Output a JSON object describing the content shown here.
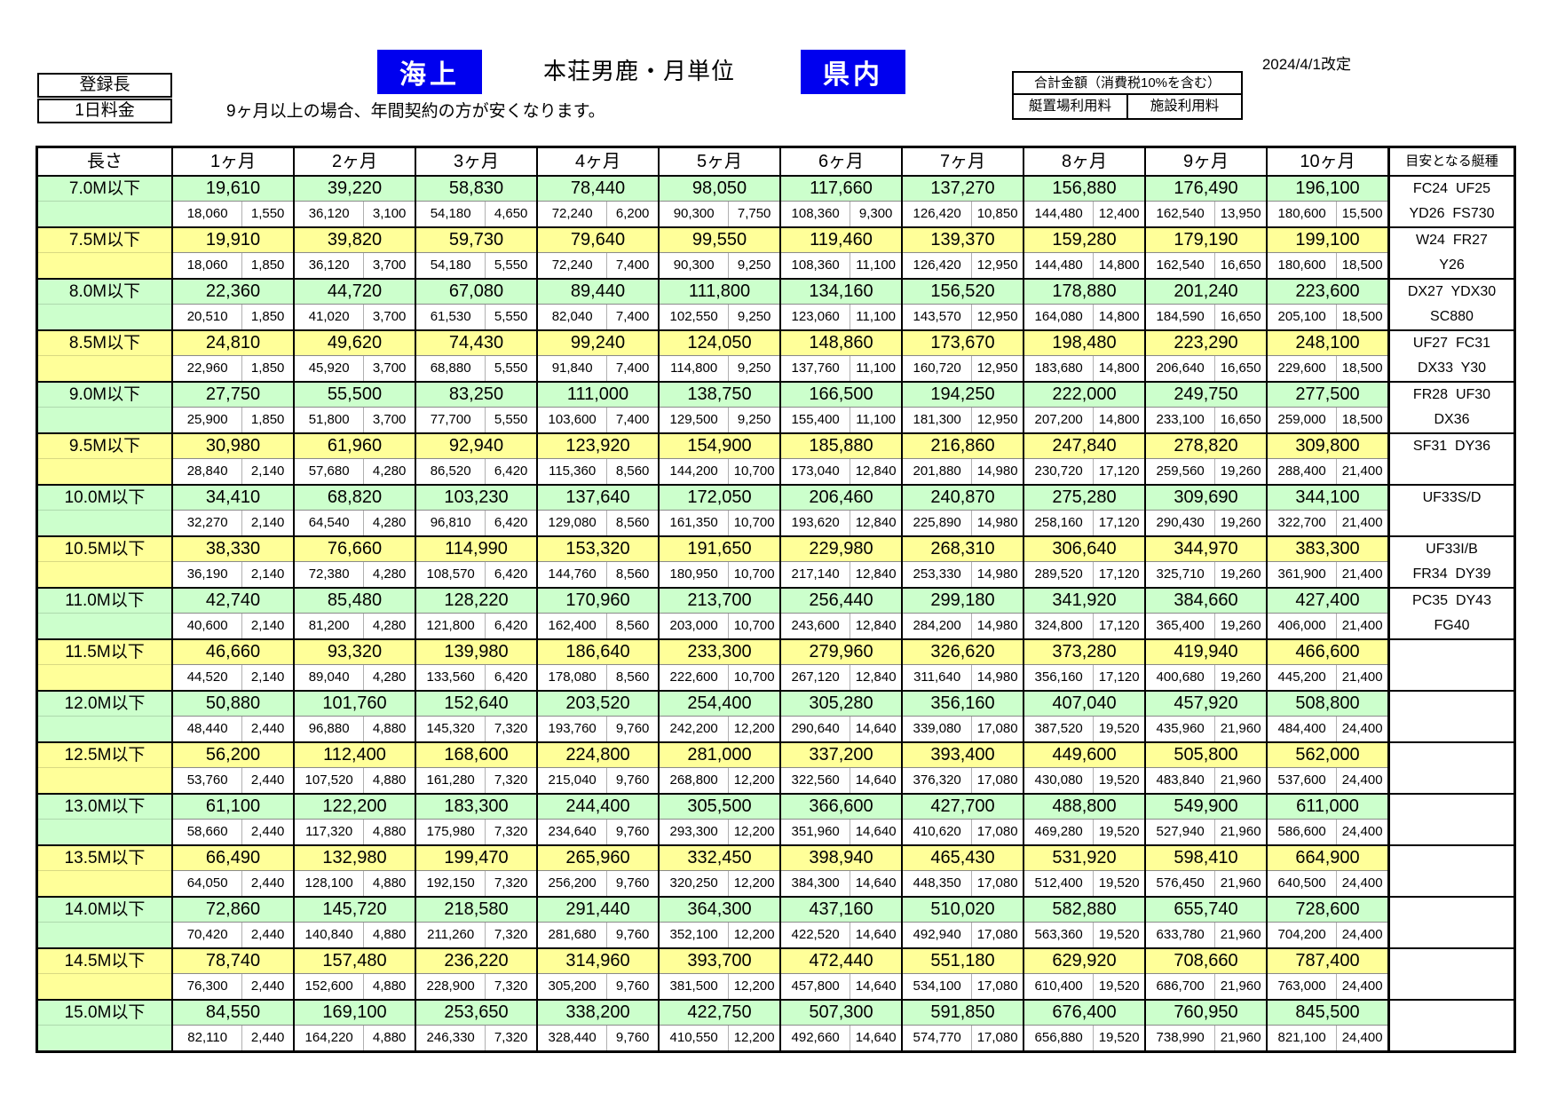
{
  "colors": {
    "accent_blue": "#0000EF",
    "row_green": "#CCFFCC",
    "row_yellow": "#FFFF99"
  },
  "header": {
    "registered_length_label": "登録長",
    "daily_fee_label": "1日料金",
    "sea_badge": "海上",
    "title": "本荘男鹿・月単位",
    "prefecture_badge": "県内",
    "revision_date": "2024/4/1改定",
    "note": "9ヶ月以上の場合、年間契約の方が安くなります。",
    "total_box": {
      "title": "合計金額（消費税10%を含む）",
      "mooring_label": "艇置場利用料",
      "facility_label": "施設利用料"
    }
  },
  "table": {
    "length_header": "長さ",
    "month_headers": [
      "1ヶ月",
      "2ヶ月",
      "3ヶ月",
      "4ヶ月",
      "5ヶ月",
      "6ヶ月",
      "7ヶ月",
      "8ヶ月",
      "9ヶ月",
      "10ヶ月"
    ],
    "boat_type_header": "目安となる艇種",
    "rows": [
      {
        "length": "7.0M以下",
        "tone": "green",
        "totals": [
          "19,610",
          "39,220",
          "58,830",
          "78,440",
          "98,050",
          "117,660",
          "137,270",
          "156,880",
          "176,490",
          "196,100"
        ],
        "mooring": [
          "18,060",
          "36,120",
          "54,180",
          "72,240",
          "90,300",
          "108,360",
          "126,420",
          "144,480",
          "162,540",
          "180,600"
        ],
        "facility": [
          "1,550",
          "3,100",
          "4,650",
          "6,200",
          "7,750",
          "9,300",
          "10,850",
          "12,400",
          "13,950",
          "15,500"
        ],
        "boats": [
          "FC24  UF25",
          "YD26  FS730"
        ]
      },
      {
        "length": "7.5M以下",
        "tone": "yellow",
        "totals": [
          "19,910",
          "39,820",
          "59,730",
          "79,640",
          "99,550",
          "119,460",
          "139,370",
          "159,280",
          "179,190",
          "199,100"
        ],
        "mooring": [
          "18,060",
          "36,120",
          "54,180",
          "72,240",
          "90,300",
          "108,360",
          "126,420",
          "144,480",
          "162,540",
          "180,600"
        ],
        "facility": [
          "1,850",
          "3,700",
          "5,550",
          "7,400",
          "9,250",
          "11,100",
          "12,950",
          "14,800",
          "16,650",
          "18,500"
        ],
        "boats": [
          "W24  FR27",
          "Y26"
        ]
      },
      {
        "length": "8.0M以下",
        "tone": "green",
        "totals": [
          "22,360",
          "44,720",
          "67,080",
          "89,440",
          "111,800",
          "134,160",
          "156,520",
          "178,880",
          "201,240",
          "223,600"
        ],
        "mooring": [
          "20,510",
          "41,020",
          "61,530",
          "82,040",
          "102,550",
          "123,060",
          "143,570",
          "164,080",
          "184,590",
          "205,100"
        ],
        "facility": [
          "1,850",
          "3,700",
          "5,550",
          "7,400",
          "9,250",
          "11,100",
          "12,950",
          "14,800",
          "16,650",
          "18,500"
        ],
        "boats": [
          "DX27  YDX30",
          "SC880"
        ]
      },
      {
        "length": "8.5M以下",
        "tone": "yellow",
        "totals": [
          "24,810",
          "49,620",
          "74,430",
          "99,240",
          "124,050",
          "148,860",
          "173,670",
          "198,480",
          "223,290",
          "248,100"
        ],
        "mooring": [
          "22,960",
          "45,920",
          "68,880",
          "91,840",
          "114,800",
          "137,760",
          "160,720",
          "183,680",
          "206,640",
          "229,600"
        ],
        "facility": [
          "1,850",
          "3,700",
          "5,550",
          "7,400",
          "9,250",
          "11,100",
          "12,950",
          "14,800",
          "16,650",
          "18,500"
        ],
        "boats": [
          "UF27  FC31",
          "DX33  Y30"
        ]
      },
      {
        "length": "9.0M以下",
        "tone": "green",
        "totals": [
          "27,750",
          "55,500",
          "83,250",
          "111,000",
          "138,750",
          "166,500",
          "194,250",
          "222,000",
          "249,750",
          "277,500"
        ],
        "mooring": [
          "25,900",
          "51,800",
          "77,700",
          "103,600",
          "129,500",
          "155,400",
          "181,300",
          "207,200",
          "233,100",
          "259,000"
        ],
        "facility": [
          "1,850",
          "3,700",
          "5,550",
          "7,400",
          "9,250",
          "11,100",
          "12,950",
          "14,800",
          "16,650",
          "18,500"
        ],
        "boats": [
          "FR28  UF30",
          "DX36"
        ]
      },
      {
        "length": "9.5M以下",
        "tone": "yellow",
        "totals": [
          "30,980",
          "61,960",
          "92,940",
          "123,920",
          "154,900",
          "185,880",
          "216,860",
          "247,840",
          "278,820",
          "309,800"
        ],
        "mooring": [
          "28,840",
          "57,680",
          "86,520",
          "115,360",
          "144,200",
          "173,040",
          "201,880",
          "230,720",
          "259,560",
          "288,400"
        ],
        "facility": [
          "2,140",
          "4,280",
          "6,420",
          "8,560",
          "10,700",
          "12,840",
          "14,980",
          "17,120",
          "19,260",
          "21,400"
        ],
        "boats": [
          "SF31  DY36",
          ""
        ]
      },
      {
        "length": "10.0M以下",
        "tone": "green",
        "totals": [
          "34,410",
          "68,820",
          "103,230",
          "137,640",
          "172,050",
          "206,460",
          "240,870",
          "275,280",
          "309,690",
          "344,100"
        ],
        "mooring": [
          "32,270",
          "64,540",
          "96,810",
          "129,080",
          "161,350",
          "193,620",
          "225,890",
          "258,160",
          "290,430",
          "322,700"
        ],
        "facility": [
          "2,140",
          "4,280",
          "6,420",
          "8,560",
          "10,700",
          "12,840",
          "14,980",
          "17,120",
          "19,260",
          "21,400"
        ],
        "boats": [
          "UF33S/D",
          ""
        ]
      },
      {
        "length": "10.5M以下",
        "tone": "yellow",
        "totals": [
          "38,330",
          "76,660",
          "114,990",
          "153,320",
          "191,650",
          "229,980",
          "268,310",
          "306,640",
          "344,970",
          "383,300"
        ],
        "mooring": [
          "36,190",
          "72,380",
          "108,570",
          "144,760",
          "180,950",
          "217,140",
          "253,330",
          "289,520",
          "325,710",
          "361,900"
        ],
        "facility": [
          "2,140",
          "4,280",
          "6,420",
          "8,560",
          "10,700",
          "12,840",
          "14,980",
          "17,120",
          "19,260",
          "21,400"
        ],
        "boats": [
          "UF33I/B",
          "FR34  DY39"
        ]
      },
      {
        "length": "11.0M以下",
        "tone": "green",
        "totals": [
          "42,740",
          "85,480",
          "128,220",
          "170,960",
          "213,700",
          "256,440",
          "299,180",
          "341,920",
          "384,660",
          "427,400"
        ],
        "mooring": [
          "40,600",
          "81,200",
          "121,800",
          "162,400",
          "203,000",
          "243,600",
          "284,200",
          "324,800",
          "365,400",
          "406,000"
        ],
        "facility": [
          "2,140",
          "4,280",
          "6,420",
          "8,560",
          "10,700",
          "12,840",
          "14,980",
          "17,120",
          "19,260",
          "21,400"
        ],
        "boats": [
          "PC35  DY43",
          "FG40"
        ]
      },
      {
        "length": "11.5M以下",
        "tone": "yellow",
        "totals": [
          "46,660",
          "93,320",
          "139,980",
          "186,640",
          "233,300",
          "279,960",
          "326,620",
          "373,280",
          "419,940",
          "466,600"
        ],
        "mooring": [
          "44,520",
          "89,040",
          "133,560",
          "178,080",
          "222,600",
          "267,120",
          "311,640",
          "356,160",
          "400,680",
          "445,200"
        ],
        "facility": [
          "2,140",
          "4,280",
          "6,420",
          "8,560",
          "10,700",
          "12,840",
          "14,980",
          "17,120",
          "19,260",
          "21,400"
        ],
        "boats": [
          "",
          ""
        ]
      },
      {
        "length": "12.0M以下",
        "tone": "green",
        "totals": [
          "50,880",
          "101,760",
          "152,640",
          "203,520",
          "254,400",
          "305,280",
          "356,160",
          "407,040",
          "457,920",
          "508,800"
        ],
        "mooring": [
          "48,440",
          "96,880",
          "145,320",
          "193,760",
          "242,200",
          "290,640",
          "339,080",
          "387,520",
          "435,960",
          "484,400"
        ],
        "facility": [
          "2,440",
          "4,880",
          "7,320",
          "9,760",
          "12,200",
          "14,640",
          "17,080",
          "19,520",
          "21,960",
          "24,400"
        ],
        "boats": [
          "",
          ""
        ]
      },
      {
        "length": "12.5M以下",
        "tone": "yellow",
        "totals": [
          "56,200",
          "112,400",
          "168,600",
          "224,800",
          "281,000",
          "337,200",
          "393,400",
          "449,600",
          "505,800",
          "562,000"
        ],
        "mooring": [
          "53,760",
          "107,520",
          "161,280",
          "215,040",
          "268,800",
          "322,560",
          "376,320",
          "430,080",
          "483,840",
          "537,600"
        ],
        "facility": [
          "2,440",
          "4,880",
          "7,320",
          "9,760",
          "12,200",
          "14,640",
          "17,080",
          "19,520",
          "21,960",
          "24,400"
        ],
        "boats": [
          "",
          ""
        ]
      },
      {
        "length": "13.0M以下",
        "tone": "green",
        "totals": [
          "61,100",
          "122,200",
          "183,300",
          "244,400",
          "305,500",
          "366,600",
          "427,700",
          "488,800",
          "549,900",
          "611,000"
        ],
        "mooring": [
          "58,660",
          "117,320",
          "175,980",
          "234,640",
          "293,300",
          "351,960",
          "410,620",
          "469,280",
          "527,940",
          "586,600"
        ],
        "facility": [
          "2,440",
          "4,880",
          "7,320",
          "9,760",
          "12,200",
          "14,640",
          "17,080",
          "19,520",
          "21,960",
          "24,400"
        ],
        "boats": [
          "",
          ""
        ]
      },
      {
        "length": "13.5M以下",
        "tone": "yellow",
        "totals": [
          "66,490",
          "132,980",
          "199,470",
          "265,960",
          "332,450",
          "398,940",
          "465,430",
          "531,920",
          "598,410",
          "664,900"
        ],
        "mooring": [
          "64,050",
          "128,100",
          "192,150",
          "256,200",
          "320,250",
          "384,300",
          "448,350",
          "512,400",
          "576,450",
          "640,500"
        ],
        "facility": [
          "2,440",
          "4,880",
          "7,320",
          "9,760",
          "12,200",
          "14,640",
          "17,080",
          "19,520",
          "21,960",
          "24,400"
        ],
        "boats": [
          "",
          ""
        ]
      },
      {
        "length": "14.0M以下",
        "tone": "green",
        "totals": [
          "72,860",
          "145,720",
          "218,580",
          "291,440",
          "364,300",
          "437,160",
          "510,020",
          "582,880",
          "655,740",
          "728,600"
        ],
        "mooring": [
          "70,420",
          "140,840",
          "211,260",
          "281,680",
          "352,100",
          "422,520",
          "492,940",
          "563,360",
          "633,780",
          "704,200"
        ],
        "facility": [
          "2,440",
          "4,880",
          "7,320",
          "9,760",
          "12,200",
          "14,640",
          "17,080",
          "19,520",
          "21,960",
          "24,400"
        ],
        "boats": [
          "",
          ""
        ]
      },
      {
        "length": "14.5M以下",
        "tone": "yellow",
        "totals": [
          "78,740",
          "157,480",
          "236,220",
          "314,960",
          "393,700",
          "472,440",
          "551,180",
          "629,920",
          "708,660",
          "787,400"
        ],
        "mooring": [
          "76,300",
          "152,600",
          "228,900",
          "305,200",
          "381,500",
          "457,800",
          "534,100",
          "610,400",
          "686,700",
          "763,000"
        ],
        "facility": [
          "2,440",
          "4,880",
          "7,320",
          "9,760",
          "12,200",
          "14,640",
          "17,080",
          "19,520",
          "21,960",
          "24,400"
        ],
        "boats": [
          "",
          ""
        ]
      },
      {
        "length": "15.0M以下",
        "tone": "green",
        "totals": [
          "84,550",
          "169,100",
          "253,650",
          "338,200",
          "422,750",
          "507,300",
          "591,850",
          "676,400",
          "760,950",
          "845,500"
        ],
        "mooring": [
          "82,110",
          "164,220",
          "246,330",
          "328,440",
          "410,550",
          "492,660",
          "574,770",
          "656,880",
          "738,990",
          "821,100"
        ],
        "facility": [
          "2,440",
          "4,880",
          "7,320",
          "9,760",
          "12,200",
          "14,640",
          "17,080",
          "19,520",
          "21,960",
          "24,400"
        ],
        "boats": [
          "",
          ""
        ]
      }
    ]
  }
}
